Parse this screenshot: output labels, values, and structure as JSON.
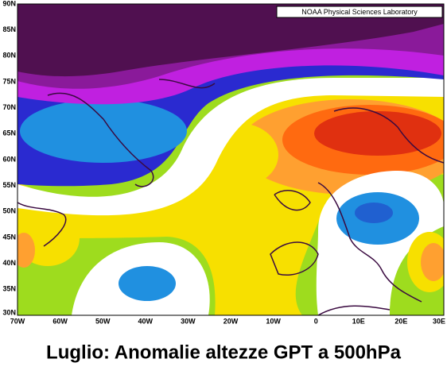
{
  "map": {
    "attribution": "NOAA Physical Sciences Laboratory",
    "lat_labels": [
      "90N",
      "85N",
      "80N",
      "75N",
      "70N",
      "65N",
      "60N",
      "55N",
      "50N",
      "45N",
      "40N",
      "35N",
      "30N"
    ],
    "lon_labels": [
      "70W",
      "60W",
      "50W",
      "40W",
      "30W",
      "20W",
      "10W",
      "0",
      "10E",
      "20E",
      "30E"
    ]
  },
  "caption": "Luglio: Anomalie altezze GPT a 500hPa"
}
